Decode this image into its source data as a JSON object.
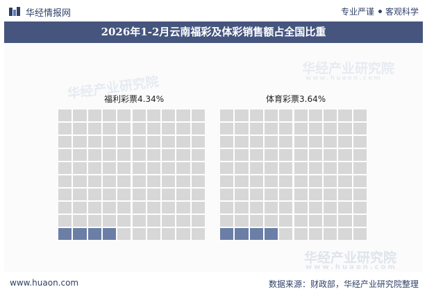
{
  "header": {
    "brand": "华经情报网",
    "tagline_left": "专业严谨",
    "tagline_right": "客观科学"
  },
  "title": "2026年1-2月云南福彩及体彩销售额占全国比重",
  "watermarks": {
    "cn": "华经产业研究院",
    "en": "www.huaon.com"
  },
  "chart_data": {
    "type": "waffle",
    "grid": {
      "rows": 10,
      "cols": 10
    },
    "charts": [
      {
        "label": "福利彩票4.34%",
        "value": 4.34,
        "unit": "%",
        "filled_color": "#6b7ea6",
        "empty_color": "#d7d7d7"
      },
      {
        "label": "体育彩票3.64%",
        "value": 3.64,
        "unit": "%",
        "filled_color": "#6b7ea6",
        "empty_color": "#d7d7d7"
      }
    ]
  },
  "footer": {
    "url": "www.huaon.com",
    "source": "数据来源：财政部，华经产业研究院整理"
  },
  "colors": {
    "title_bar": "#45557e",
    "brand_text": "#2e3f66"
  }
}
